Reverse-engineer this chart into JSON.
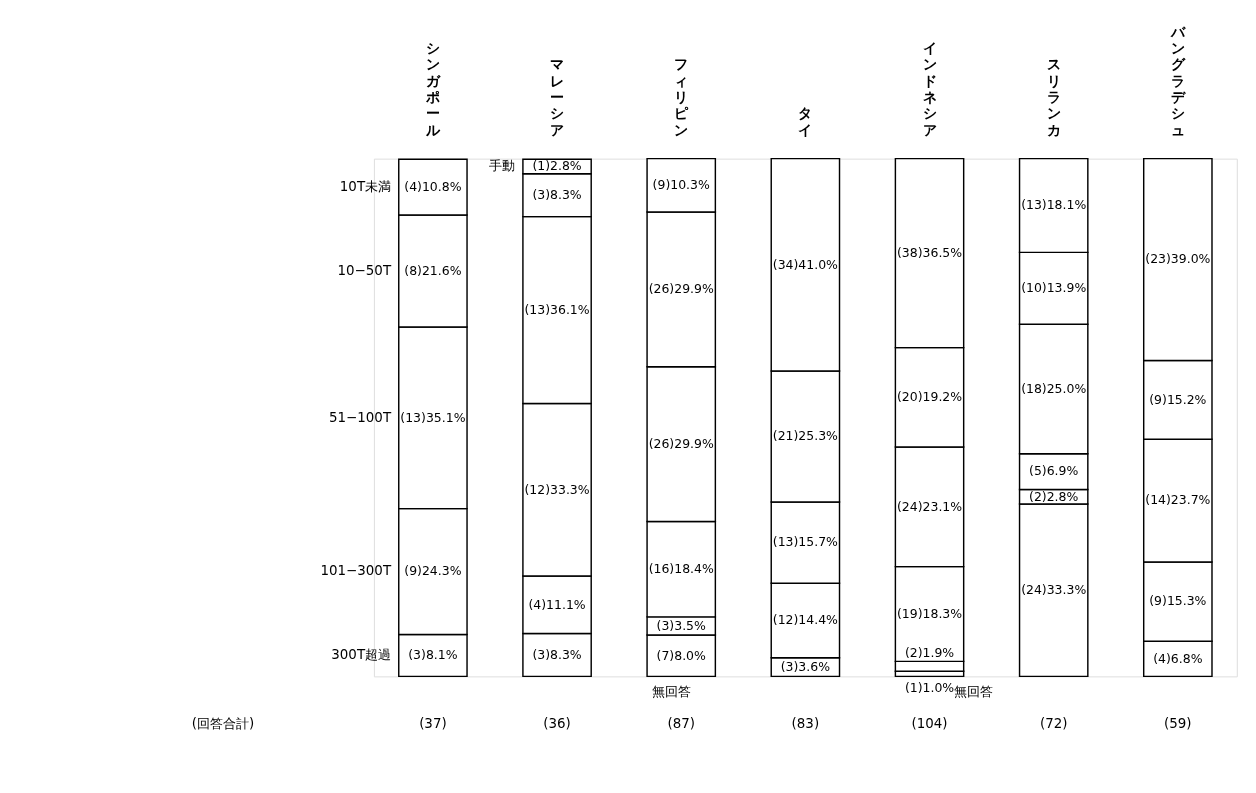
{
  "chart_data": {
    "type": "bar",
    "stacked": true,
    "legend": false,
    "categories": [
      "シンガポール",
      "マレーシア",
      "フィリピン",
      "タイ",
      "インドネシア",
      "スリランカ",
      "バングラデシュ"
    ],
    "series": [
      {
        "color": "#ffffff",
        "values": [
          null,
          null,
          8.0,
          3.6,
          1.0,
          33.3,
          6.8
        ],
        "value_labels": [
          null,
          null,
          "(7)8.0%",
          "(3)3.6%",
          "(1)1.0%",
          "(24)33.3%",
          "(4)6.8%"
        ]
      },
      {
        "name": "300T超過",
        "color": "#ffffff",
        "values": [
          8.1,
          8.3,
          3.5,
          14.4,
          1.9,
          2.8,
          15.3
        ],
        "value_labels": [
          "(3)8.1%",
          "(3)8.3%",
          "(3)3.5%",
          "(12)14.4%",
          "(2)1.9%",
          "(2)2.8%",
          "(9)15.3%"
        ]
      },
      {
        "name": "101−300T",
        "color": "#ffffff",
        "values": [
          24.3,
          11.1,
          18.4,
          15.7,
          18.3,
          6.9,
          23.7
        ],
        "value_labels": [
          "(9)24.3%",
          "(4)11.1%",
          "(16)18.4%",
          "(13)15.7%",
          "(19)18.3%",
          "(5)6.9%",
          "(14)23.7%"
        ]
      },
      {
        "name": "51−100T",
        "color": "#ffffff",
        "values": [
          35.1,
          33.3,
          29.9,
          25.3,
          23.1,
          25.0,
          15.2
        ],
        "value_labels": [
          "(13)35.1%",
          "(12)33.3%",
          "(26)29.9%",
          "(21)25.3%",
          "(24)23.1%",
          "(18)25.0%",
          "(9)15.2%"
        ]
      },
      {
        "name": "10−50T",
        "color": "#ffffff",
        "values": [
          21.6,
          36.1,
          29.9,
          41.0,
          19.2,
          13.9,
          39.0
        ],
        "value_labels": [
          "(8)21.6%",
          "(13)36.1%",
          "(26)29.9%",
          "(34)41.0%",
          "(20)19.2%",
          "(10)13.9%",
          "(23)39.0%"
        ]
      },
      {
        "name": "10T未満",
        "color": "#ffffff",
        "values": [
          10.8,
          8.3,
          10.3,
          null,
          null,
          18.1,
          null
        ],
        "value_labels": [
          "(4)10.8%",
          "(3)8.3%",
          "(9)10.3%",
          null,
          null,
          "(13)18.1%",
          null
        ]
      },
      {
        "name": "手動",
        "color": "#ffffff",
        "values": [
          null,
          2.8,
          null,
          null,
          36.5,
          null,
          null
        ],
        "value_labels": [
          null,
          "(1)2.8%",
          null,
          null,
          "(38)36.5%",
          null,
          null
        ]
      }
    ],
    "annotations": [
      "(回答合計)",
      "(37)",
      "(36)",
      "(87)",
      "(83)",
      "(104)",
      "(72)",
      "(59)",
      "無回答",
      "無回答"
    ]
  }
}
